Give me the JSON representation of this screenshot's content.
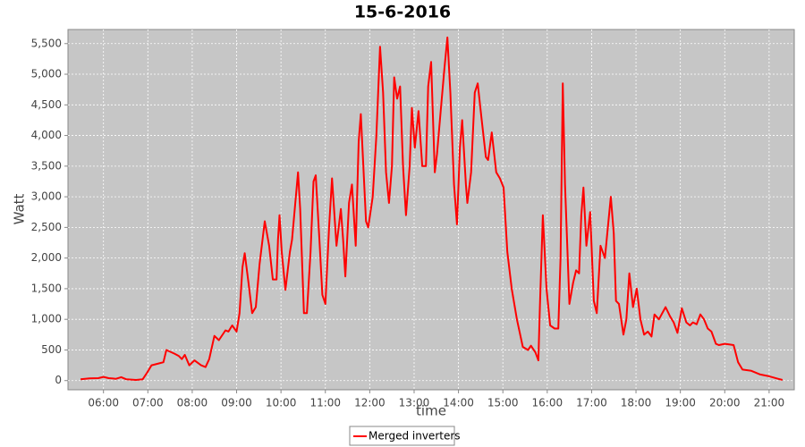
{
  "chart_data": {
    "type": "line",
    "title": "15-6-2016",
    "x_label": "time",
    "y_label": "Watt",
    "x": [
      "05:29",
      "05:41",
      "05:53",
      "06:00",
      "06:07",
      "06:17",
      "06:24",
      "06:31",
      "06:44",
      "06:53",
      "06:59",
      "07:05",
      "07:15",
      "07:21",
      "07:25",
      "07:36",
      "07:42",
      "07:46",
      "07:50",
      "07:56",
      "08:03",
      "08:12",
      "08:18",
      "08:23",
      "08:30",
      "08:36",
      "08:45",
      "08:49",
      "08:54",
      "09:00",
      "09:04",
      "09:08",
      "09:11",
      "09:16",
      "09:21",
      "09:26",
      "09:31",
      "09:38",
      "09:44",
      "09:49",
      "09:54",
      "09:56",
      "09:58",
      "10:01",
      "10:06",
      "10:12",
      "10:15",
      "10:23",
      "10:26",
      "10:31",
      "10:35",
      "10:40",
      "10:44",
      "10:47",
      "10:52",
      "10:56",
      "11:00",
      "11:05",
      "11:09",
      "11:15",
      "11:21",
      "11:24",
      "11:27",
      "11:32",
      "11:36",
      "11:41",
      "11:45",
      "11:48",
      "11:55",
      "11:58",
      "12:04",
      "12:09",
      "12:14",
      "12:18",
      "12:22",
      "12:26",
      "12:30",
      "12:33",
      "12:37",
      "12:41",
      "12:45",
      "12:49",
      "12:54",
      "12:57",
      "13:01",
      "13:06",
      "13:11",
      "13:16",
      "13:19",
      "13:23",
      "13:28",
      "13:31",
      "13:36",
      "13:41",
      "13:45",
      "13:49",
      "13:54",
      "13:58",
      "14:02",
      "14:05",
      "14:10",
      "14:12",
      "14:17",
      "14:22",
      "14:26",
      "14:31",
      "14:37",
      "14:40",
      "14:45",
      "14:51",
      "14:56",
      "15:01",
      "15:06",
      "15:12",
      "15:19",
      "15:27",
      "15:34",
      "15:38",
      "15:44",
      "15:48",
      "15:50",
      "15:54",
      "15:59",
      "16:04",
      "16:10",
      "16:15",
      "16:18",
      "16:21",
      "16:24",
      "16:30",
      "16:35",
      "16:39",
      "16:43",
      "16:46",
      "16:49",
      "16:53",
      "16:58",
      "17:03",
      "17:07",
      "17:12",
      "17:18",
      "17:26",
      "17:30",
      "17:33",
      "17:37",
      "17:43",
      "17:47",
      "17:51",
      "17:56",
      "18:01",
      "18:06",
      "18:11",
      "18:16",
      "18:21",
      "18:25",
      "18:31",
      "18:40",
      "18:46",
      "18:51",
      "18:56",
      "19:02",
      "19:08",
      "19:13",
      "19:17",
      "19:22",
      "19:27",
      "19:32",
      "19:37",
      "19:42",
      "19:48",
      "19:52",
      "20:00",
      "20:06",
      "20:12",
      "20:18",
      "20:24",
      "20:36",
      "20:48",
      "21:00",
      "21:12",
      "21:18"
    ],
    "series": [
      {
        "name": "Merged inverters",
        "color": "#ff0000",
        "values": [
          20,
          35,
          40,
          60,
          40,
          30,
          55,
          20,
          10,
          20,
          130,
          250,
          280,
          300,
          500,
          440,
          400,
          350,
          420,
          250,
          330,
          250,
          220,
          350,
          730,
          660,
          820,
          800,
          900,
          800,
          1100,
          1850,
          2080,
          1600,
          1100,
          1200,
          1900,
          2600,
          2200,
          1650,
          1650,
          2300,
          2700,
          2100,
          1480,
          2100,
          2300,
          3400,
          2800,
          1100,
          1100,
          2100,
          3250,
          3350,
          2300,
          1400,
          1250,
          2500,
          3300,
          2200,
          2800,
          2300,
          1700,
          2900,
          3200,
          2200,
          3900,
          4350,
          2600,
          2500,
          3000,
          4000,
          5450,
          4700,
          3400,
          2900,
          3500,
          4950,
          4600,
          4800,
          3500,
          2700,
          3500,
          4450,
          3800,
          4400,
          3500,
          3500,
          4800,
          5200,
          3400,
          3700,
          4400,
          5100,
          5600,
          4700,
          3200,
          2550,
          3800,
          4250,
          3200,
          2900,
          3400,
          4700,
          4850,
          4300,
          3650,
          3600,
          4050,
          3400,
          3300,
          3150,
          2100,
          1500,
          1000,
          550,
          500,
          570,
          460,
          330,
          1200,
          2700,
          1500,
          900,
          850,
          850,
          2000,
          4850,
          3200,
          1250,
          1600,
          1800,
          1750,
          2700,
          3150,
          2200,
          2750,
          1300,
          1100,
          2200,
          2000,
          3000,
          2400,
          1300,
          1250,
          750,
          1000,
          1750,
          1200,
          1500,
          1000,
          750,
          800,
          720,
          1080,
          1000,
          1200,
          1050,
          950,
          780,
          1180,
          950,
          900,
          950,
          920,
          1080,
          1000,
          850,
          800,
          600,
          580,
          600,
          590,
          580,
          300,
          180,
          160,
          100,
          70,
          30,
          10
        ]
      }
    ],
    "xlim": [
      "05:12",
      "21:34"
    ],
    "xticks": [
      "06:00",
      "07:00",
      "08:00",
      "09:00",
      "10:00",
      "11:00",
      "12:00",
      "13:00",
      "14:00",
      "15:00",
      "16:00",
      "17:00",
      "18:00",
      "19:00",
      "20:00",
      "21:00"
    ],
    "ylim": [
      -150,
      5730
    ],
    "yticks": [
      0,
      500,
      {
        "value": 1000,
        "label": "1,000"
      },
      {
        "value": 1500,
        "label": "1,500"
      },
      {
        "value": 2000,
        "label": "2,000"
      },
      {
        "value": 2500,
        "label": "2,500"
      },
      {
        "value": 3000,
        "label": "3,000"
      },
      {
        "value": 3500,
        "label": "3,500"
      },
      {
        "value": 4000,
        "label": "4,000"
      },
      {
        "value": 4500,
        "label": "4,500"
      },
      {
        "value": 5000,
        "label": "5,000"
      },
      {
        "value": 5500,
        "label": "5,500"
      }
    ],
    "grid": true,
    "legend": "bottom"
  }
}
